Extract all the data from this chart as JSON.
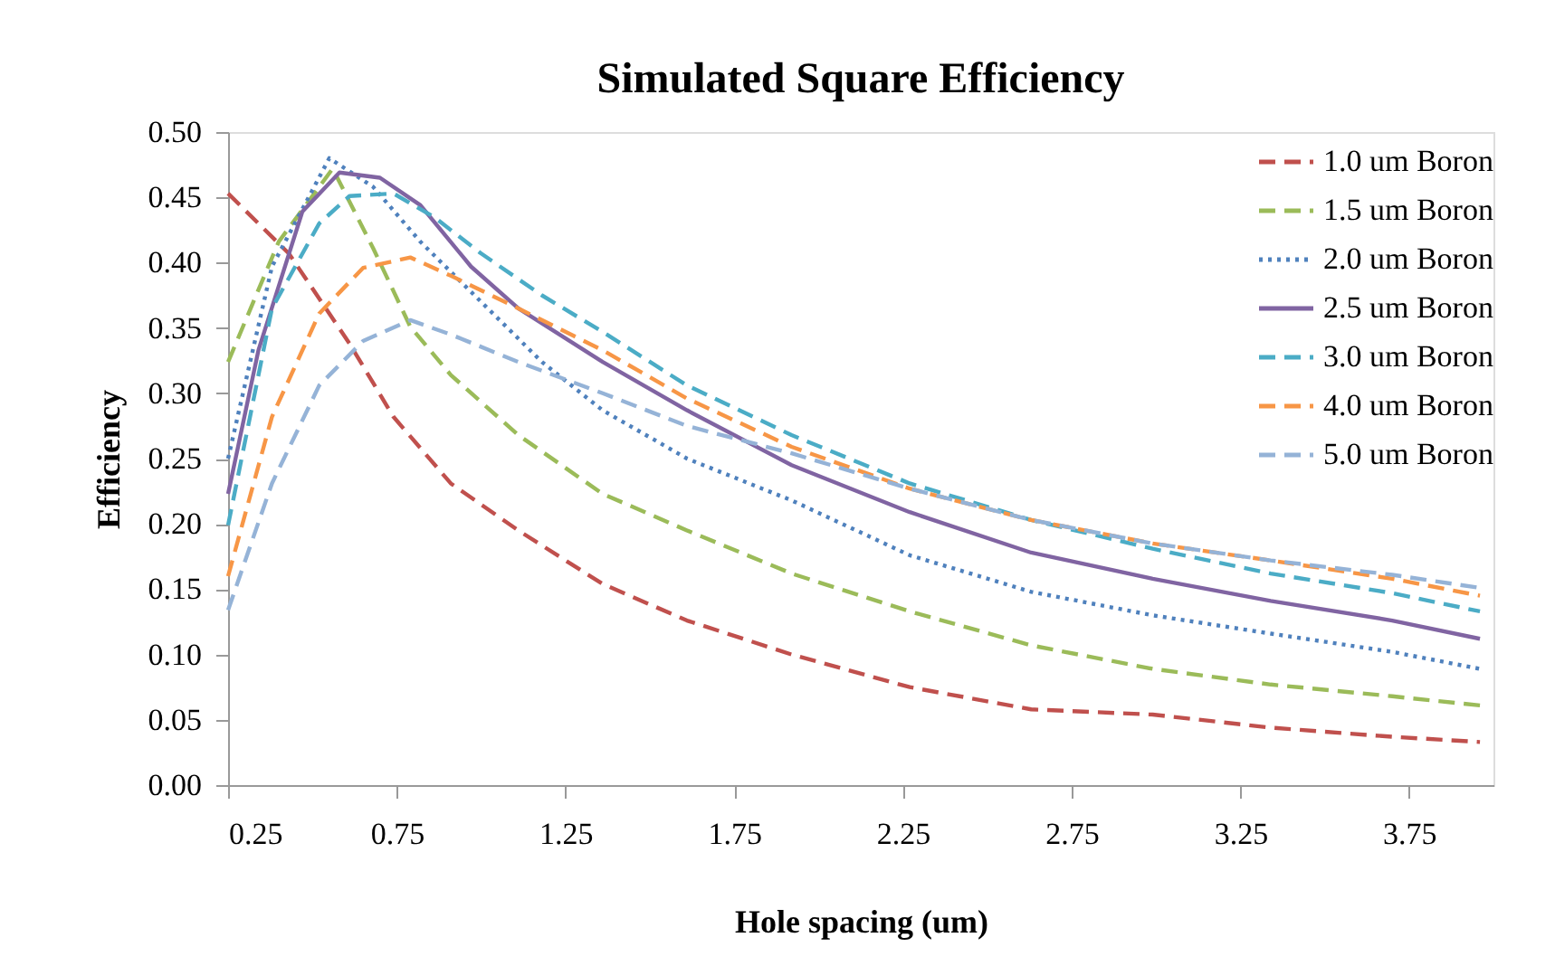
{
  "chart_data": {
    "type": "line",
    "title": "Simulated Square Efficiency",
    "xlabel": "Hole spacing (um)",
    "ylabel": "Efficiency",
    "xlim": [
      0.25,
      4.0
    ],
    "ylim": [
      0,
      0.5
    ],
    "xticks": [
      0.25,
      0.75,
      1.25,
      1.75,
      2.25,
      2.75,
      3.25,
      3.75
    ],
    "yticks": [
      {
        "value": 0,
        "label": "0.00"
      },
      {
        "value": 0.05,
        "label": "0.05"
      },
      {
        "value": 0.1,
        "label": "0.10"
      },
      {
        "value": 0.15,
        "label": "0.15"
      },
      {
        "value": 0.2,
        "label": "0.20"
      },
      {
        "value": 0.25,
        "label": "0.25"
      },
      {
        "value": 0.3,
        "label": "0.30"
      },
      {
        "value": 0.35,
        "label": "0.35"
      },
      {
        "value": 0.4,
        "label": "0.40"
      },
      {
        "value": 0.45,
        "label": "0.45"
      },
      {
        "value": 0.5,
        "label": "0.50"
      }
    ],
    "grid": false,
    "legend": "top right",
    "series": [
      {
        "name": "1.0 um Boron",
        "color": "#c0504d",
        "line_style": "dashed",
        "x": [
          0.25,
          0.43,
          0.61,
          0.74,
          0.91,
          1.11,
          1.36,
          1.61,
          1.92,
          2.27,
          2.63,
          2.99,
          3.34,
          3.7,
          3.96
        ],
        "values": [
          0.453,
          0.407,
          0.338,
          0.282,
          0.231,
          0.195,
          0.154,
          0.126,
          0.1,
          0.075,
          0.058,
          0.054,
          0.044,
          0.037,
          0.033
        ]
      },
      {
        "name": "1.5 um Boron",
        "color": "#9bbb59",
        "line_style": "dashed",
        "x": [
          0.25,
          0.4,
          0.56,
          0.68,
          0.79,
          0.91,
          1.11,
          1.36,
          1.61,
          1.92,
          2.27,
          2.63,
          2.99,
          3.34,
          3.7,
          3.96
        ],
        "values": [
          0.324,
          0.416,
          0.472,
          0.411,
          0.351,
          0.314,
          0.268,
          0.223,
          0.195,
          0.162,
          0.133,
          0.107,
          0.089,
          0.077,
          0.068,
          0.061
        ]
      },
      {
        "name": "2.0 um Boron",
        "color": "#4f81bd",
        "line_style": "dotted",
        "x": [
          0.25,
          0.38,
          0.55,
          0.68,
          0.82,
          1.0,
          1.18,
          1.36,
          1.61,
          1.92,
          2.27,
          2.63,
          2.99,
          3.34,
          3.7,
          3.96
        ],
        "values": [
          0.25,
          0.397,
          0.48,
          0.458,
          0.416,
          0.37,
          0.324,
          0.287,
          0.25,
          0.218,
          0.176,
          0.148,
          0.13,
          0.116,
          0.102,
          0.089
        ]
      },
      {
        "name": "2.5 um Boron",
        "color": "#8064a2",
        "line_style": "solid",
        "x": [
          0.25,
          0.34,
          0.47,
          0.58,
          0.7,
          0.82,
          0.97,
          1.11,
          1.36,
          1.61,
          1.92,
          2.27,
          2.63,
          2.99,
          3.34,
          3.7,
          3.96
        ],
        "values": [
          0.223,
          0.333,
          0.439,
          0.469,
          0.465,
          0.444,
          0.397,
          0.365,
          0.324,
          0.287,
          0.245,
          0.209,
          0.178,
          0.158,
          0.141,
          0.126,
          0.112
        ]
      },
      {
        "name": "3.0 um Boron",
        "color": "#4bacc6",
        "line_style": "dashed",
        "x": [
          0.25,
          0.38,
          0.52,
          0.61,
          0.74,
          0.86,
          1.0,
          1.18,
          1.36,
          1.61,
          1.92,
          2.27,
          2.63,
          2.99,
          3.34,
          3.7,
          3.96
        ],
        "values": [
          0.199,
          0.365,
          0.43,
          0.451,
          0.453,
          0.435,
          0.407,
          0.375,
          0.347,
          0.306,
          0.268,
          0.231,
          0.203,
          0.181,
          0.162,
          0.147,
          0.133
        ]
      },
      {
        "name": "4.0 um Boron",
        "color": "#f79646",
        "line_style": "dashed",
        "x": [
          0.25,
          0.38,
          0.52,
          0.65,
          0.79,
          0.91,
          1.11,
          1.36,
          1.61,
          1.92,
          2.27,
          2.63,
          2.99,
          3.34,
          3.7,
          3.96
        ],
        "values": [
          0.16,
          0.282,
          0.361,
          0.396,
          0.404,
          0.39,
          0.365,
          0.333,
          0.296,
          0.259,
          0.227,
          0.203,
          0.185,
          0.172,
          0.158,
          0.145
        ]
      },
      {
        "name": "5.0 um Boron",
        "color": "#95b3d7",
        "line_style": "dashed",
        "x": [
          0.25,
          0.38,
          0.52,
          0.65,
          0.79,
          0.91,
          1.11,
          1.36,
          1.61,
          1.92,
          2.27,
          2.63,
          2.99,
          3.34,
          3.7,
          3.96
        ],
        "values": [
          0.134,
          0.231,
          0.306,
          0.34,
          0.356,
          0.345,
          0.324,
          0.3,
          0.275,
          0.254,
          0.227,
          0.203,
          0.185,
          0.172,
          0.161,
          0.151
        ]
      }
    ]
  }
}
